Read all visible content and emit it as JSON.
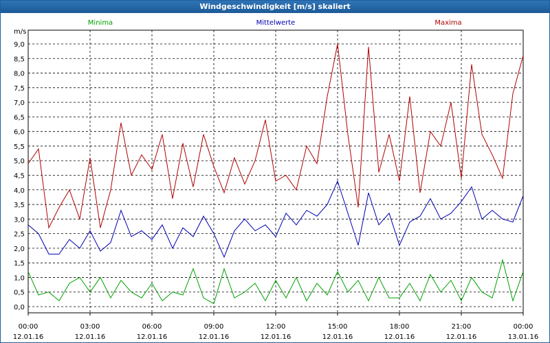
{
  "window": {
    "title": "Windgeschwindigkeit [m/s] skaliert"
  },
  "chart_data": {
    "type": "line",
    "title": "Windgeschwindigkeit [m/s] skaliert",
    "ylabel": "m/s",
    "ylim": [
      0.0,
      9.0
    ],
    "y_ticks": [
      "0,0",
      "0,5",
      "1,0",
      "1,5",
      "2,0",
      "2,5",
      "3,0",
      "3,5",
      "4,0",
      "4,5",
      "5,0",
      "5,5",
      "6,0",
      "6,5",
      "7,0",
      "7,5",
      "8,0",
      "8,5",
      "9,0"
    ],
    "x_ticks": [
      {
        "time": "00:00",
        "date": "12.01.16"
      },
      {
        "time": "03:00",
        "date": "12.01.16"
      },
      {
        "time": "06:00",
        "date": "12.01.16"
      },
      {
        "time": "09:00",
        "date": "12.01.16"
      },
      {
        "time": "12:00",
        "date": "12.01.16"
      },
      {
        "time": "15:00",
        "date": "12.01.16"
      },
      {
        "time": "18:00",
        "date": "12.01.16"
      },
      {
        "time": "21:00",
        "date": "12.01.16"
      },
      {
        "time": "00:00",
        "date": "13.01.16"
      }
    ],
    "grid": true,
    "legend_position": "top",
    "x_start": "12.01.16 00:00",
    "x_end": "13.01.16 00:00",
    "x_unit": "hours",
    "series": [
      {
        "name": "Minima",
        "color": "#00a000",
        "x": [
          0,
          0.5,
          1,
          1.5,
          2,
          2.5,
          3,
          3.5,
          4,
          4.5,
          5,
          5.5,
          6,
          6.5,
          7,
          7.5,
          8,
          8.5,
          9,
          9.5,
          10,
          10.5,
          11,
          11.5,
          12,
          12.5,
          13,
          13.5,
          14,
          14.5,
          15,
          15.5,
          16,
          16.5,
          17,
          17.5,
          18,
          18.5,
          19,
          19.5,
          20,
          20.5,
          21,
          21.5,
          22,
          22.5,
          23,
          23.5,
          24
        ],
        "values": [
          1.2,
          0.4,
          0.5,
          0.2,
          0.8,
          1.0,
          0.5,
          1.0,
          0.3,
          0.9,
          0.5,
          0.3,
          0.8,
          0.2,
          0.5,
          0.4,
          1.3,
          0.3,
          0.1,
          1.3,
          0.3,
          0.5,
          0.8,
          0.2,
          0.9,
          0.3,
          1.0,
          0.2,
          0.8,
          0.4,
          1.2,
          0.5,
          0.9,
          0.2,
          1.0,
          0.3,
          0.3,
          0.8,
          0.2,
          1.1,
          0.5,
          0.9,
          0.2,
          1.0,
          0.5,
          0.3,
          1.6,
          0.2,
          1.2
        ]
      },
      {
        "name": "Mittelwerte",
        "color": "#0000b0",
        "x": [
          0,
          0.5,
          1,
          1.5,
          2,
          2.5,
          3,
          3.5,
          4,
          4.5,
          5,
          5.5,
          6,
          6.5,
          7,
          7.5,
          8,
          8.5,
          9,
          9.5,
          10,
          10.5,
          11,
          11.5,
          12,
          12.5,
          13,
          13.5,
          14,
          14.5,
          15,
          15.5,
          16,
          16.5,
          17,
          17.5,
          18,
          18.5,
          19,
          19.5,
          20,
          20.5,
          21,
          21.5,
          22,
          22.5,
          23,
          23.5,
          24
        ],
        "values": [
          2.8,
          2.5,
          1.8,
          1.8,
          2.3,
          2.0,
          2.6,
          1.9,
          2.2,
          3.3,
          2.4,
          2.6,
          2.3,
          2.8,
          2.0,
          2.7,
          2.4,
          3.1,
          2.5,
          1.7,
          2.6,
          3.0,
          2.6,
          2.8,
          2.4,
          3.2,
          2.8,
          3.3,
          3.1,
          3.5,
          4.3,
          3.2,
          2.1,
          3.9,
          2.8,
          3.2,
          2.1,
          2.9,
          3.1,
          3.7,
          3.0,
          3.2,
          3.6,
          4.1,
          3.0,
          3.3,
          3.0,
          2.9,
          3.8
        ]
      },
      {
        "name": "Maxima",
        "color": "#b00000",
        "x": [
          0,
          0.5,
          1,
          1.5,
          2,
          2.5,
          3,
          3.5,
          4,
          4.5,
          5,
          5.5,
          6,
          6.5,
          7,
          7.5,
          8,
          8.5,
          9,
          9.5,
          10,
          10.5,
          11,
          11.5,
          12,
          12.5,
          13,
          13.5,
          14,
          14.5,
          15,
          15.5,
          16,
          16.5,
          17,
          17.5,
          18,
          18.5,
          19,
          19.5,
          20,
          20.5,
          21,
          21.5,
          22,
          22.5,
          23,
          23.5,
          24
        ],
        "values": [
          4.9,
          5.4,
          2.7,
          3.4,
          4.0,
          3.0,
          5.1,
          2.7,
          4.0,
          6.3,
          4.5,
          5.2,
          4.7,
          5.9,
          3.7,
          5.6,
          4.1,
          5.9,
          4.8,
          3.9,
          5.1,
          4.2,
          5.0,
          6.4,
          4.3,
          4.5,
          4.0,
          5.5,
          4.9,
          7.2,
          9.0,
          5.9,
          3.4,
          8.9,
          4.6,
          5.9,
          4.3,
          7.2,
          3.9,
          6.0,
          5.5,
          7.0,
          4.4,
          8.3,
          5.9,
          5.2,
          4.4,
          7.3,
          8.6
        ]
      }
    ]
  }
}
